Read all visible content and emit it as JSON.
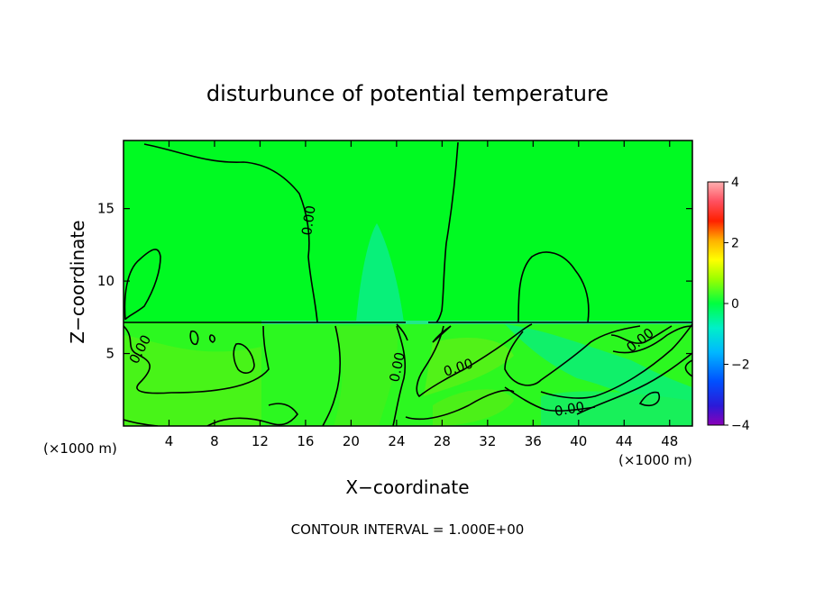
{
  "chart_data": {
    "type": "heatmap",
    "title": "disturbunce of potential temperature",
    "xlabel": "X−coordinate",
    "ylabel": "Z−coordinate",
    "x_unit_left": "(×1000 m)",
    "x_unit_right": "(×1000 m)",
    "xlim": [
      0,
      50
    ],
    "ylim": [
      0,
      19.7
    ],
    "x_ticks": [
      4,
      8,
      12,
      16,
      20,
      24,
      28,
      32,
      36,
      40,
      44,
      48
    ],
    "y_ticks": [
      5,
      10,
      15
    ],
    "colorbar": {
      "range": [
        -4,
        4
      ],
      "ticks": [
        4,
        2,
        0,
        -2,
        -4
      ]
    },
    "contour_interval_label": "CONTOUR INTERVAL = 1.000E+00",
    "contour_labels": [
      "0.00",
      "0.00",
      "0.00",
      "0.00",
      "0.00",
      "0.00",
      "0.00"
    ],
    "background_value": 0.0,
    "note_regions": [
      {
        "kind": "lower-layer",
        "z": [
          0,
          7.2
        ],
        "value_range": [
          -0.6,
          0.5
        ]
      },
      {
        "kind": "slight-cool-plume",
        "x": [
          19,
          24
        ],
        "z": [
          7,
          14
        ],
        "value": -0.3
      }
    ]
  }
}
